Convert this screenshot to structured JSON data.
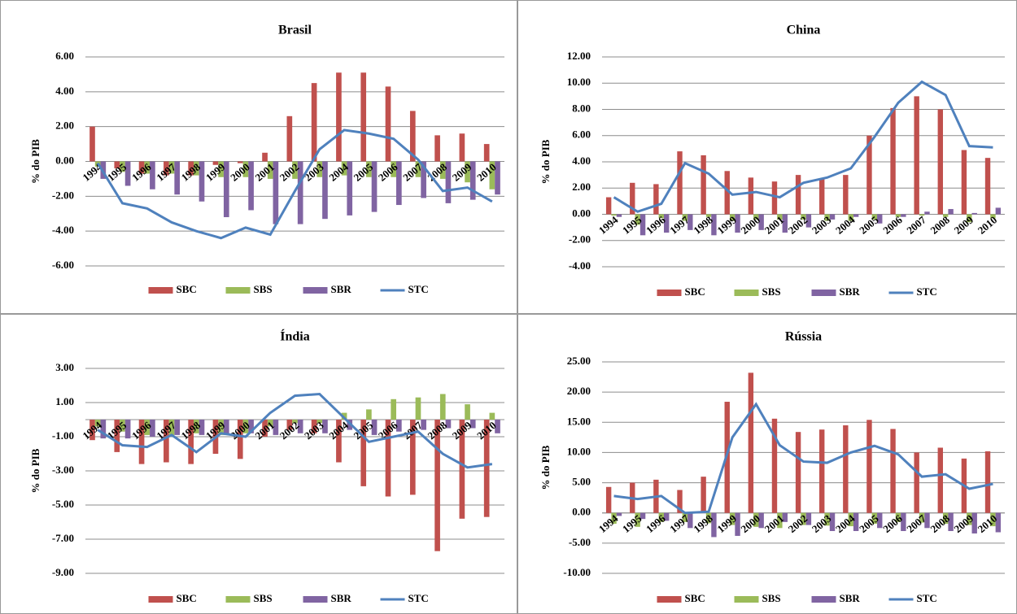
{
  "chart_data": [
    {
      "type": "bar",
      "title": "Brasil",
      "ylabel": "% do PIB",
      "categories": [
        "1994",
        "1995",
        "1996",
        "1997",
        "1998",
        "1999",
        "2000",
        "2001",
        "2002",
        "2003",
        "2004",
        "2005",
        "2006",
        "2007",
        "2008",
        "2009",
        "2010"
      ],
      "ylim": [
        -6,
        6
      ],
      "yticks": [
        {
          "value": -6,
          "label": "-6.00"
        },
        {
          "value": -4,
          "label": "-4.00"
        },
        {
          "value": -2,
          "label": "-2.00"
        },
        {
          "value": 0,
          "label": "0.00"
        },
        {
          "value": 2,
          "label": "2.00"
        },
        {
          "value": 4,
          "label": "4.00"
        },
        {
          "value": 6,
          "label": "6.00"
        }
      ],
      "grid": true,
      "series": [
        {
          "name": "SBC",
          "color": "#c0504d",
          "values": [
            2.0,
            -0.4,
            -0.7,
            -0.8,
            -0.8,
            -0.2,
            -0.1,
            0.5,
            2.6,
            4.5,
            5.1,
            5.1,
            4.3,
            2.9,
            1.5,
            1.6,
            1.0
          ]
        },
        {
          "name": "SBS",
          "color": "#9bbb59",
          "values": [
            -0.3,
            -0.6,
            -0.7,
            -0.7,
            -0.8,
            -0.9,
            -0.9,
            -1.0,
            -1.0,
            -0.9,
            -0.8,
            -0.9,
            -0.9,
            -0.9,
            -1.0,
            -1.2,
            -1.6
          ]
        },
        {
          "name": "SBR",
          "color": "#8064a2",
          "values": [
            -1.0,
            -1.4,
            -1.6,
            -1.9,
            -2.3,
            -3.2,
            -2.8,
            -3.6,
            -3.6,
            -3.3,
            -3.1,
            -2.9,
            -2.5,
            -2.1,
            -2.4,
            -2.2,
            -1.9
          ]
        },
        {
          "name": "STC",
          "color": "#4f81bd",
          "type": "line",
          "values": [
            -0.1,
            -2.4,
            -2.7,
            -3.5,
            -4.0,
            -4.4,
            -3.8,
            -4.2,
            -1.7,
            0.7,
            1.8,
            1.6,
            1.3,
            0.1,
            -1.7,
            -1.5,
            -2.3
          ]
        }
      ]
    },
    {
      "type": "bar",
      "title": "China",
      "ylabel": "% do PIB",
      "categories": [
        "1994",
        "1995",
        "1996",
        "1997",
        "1998",
        "1999",
        "2000",
        "2001",
        "2002",
        "2003",
        "2004",
        "2005",
        "2006",
        "2007",
        "2008",
        "2009",
        "2010"
      ],
      "ylim": [
        -4,
        12
      ],
      "yticks": [
        {
          "value": -4,
          "label": "-4.00"
        },
        {
          "value": -2,
          "label": "-2.00"
        },
        {
          "value": 0,
          "label": "0.00"
        },
        {
          "value": 2,
          "label": "2.00"
        },
        {
          "value": 4,
          "label": "4.00"
        },
        {
          "value": 6,
          "label": "6.00"
        },
        {
          "value": 8,
          "label": "8.00"
        },
        {
          "value": 10,
          "label": "10.00"
        },
        {
          "value": 12,
          "label": "12.00"
        }
      ],
      "grid": true,
      "series": [
        {
          "name": "SBC",
          "color": "#c0504d",
          "values": [
            1.3,
            2.4,
            2.3,
            4.8,
            4.5,
            3.3,
            2.8,
            2.5,
            3.0,
            2.7,
            3.0,
            6.0,
            8.1,
            9.0,
            8.0,
            4.9,
            4.3
          ]
        },
        {
          "name": "SBS",
          "color": "#9bbb59",
          "values": [
            -0.1,
            -0.8,
            -0.3,
            -0.5,
            -0.2,
            -0.5,
            -0.4,
            -0.4,
            -0.4,
            -0.5,
            -0.5,
            -0.4,
            -0.2,
            -0.1,
            -0.2,
            -0.6,
            -0.3
          ]
        },
        {
          "name": "SBR",
          "color": "#8064a2",
          "values": [
            -0.2,
            -1.6,
            -1.4,
            -1.2,
            -1.6,
            -1.4,
            -1.2,
            -1.4,
            -1.0,
            -0.4,
            -0.2,
            -0.7,
            -0.2,
            0.2,
            0.4,
            0.1,
            0.5
          ]
        },
        {
          "name": "STC",
          "color": "#4f81bd",
          "type": "line",
          "values": [
            1.3,
            0.2,
            0.8,
            3.9,
            3.1,
            1.5,
            1.7,
            1.3,
            2.4,
            2.8,
            3.5,
            5.9,
            8.5,
            10.1,
            9.1,
            5.2,
            5.1
          ]
        }
      ]
    },
    {
      "type": "bar",
      "title": "Índia",
      "ylabel": "% do PIB",
      "categories": [
        "1994",
        "1995",
        "1996",
        "1997",
        "1998",
        "1999",
        "2000",
        "2001",
        "2002",
        "2003",
        "2004",
        "2005",
        "2006",
        "2007",
        "2008",
        "2009",
        "2010"
      ],
      "ylim": [
        -9,
        3
      ],
      "yticks": [
        {
          "value": -9,
          "label": "-9.00"
        },
        {
          "value": -7,
          "label": "-7.00"
        },
        {
          "value": -5,
          "label": "-5.00"
        },
        {
          "value": -3,
          "label": "-3.00"
        },
        {
          "value": -1,
          "label": "-1.00"
        },
        {
          "value": 1,
          "label": "1.00"
        },
        {
          "value": 3,
          "label": "3.00"
        }
      ],
      "grid": true,
      "series": [
        {
          "name": "SBC",
          "color": "#c0504d",
          "values": [
            -1.2,
            -1.9,
            -2.6,
            -2.5,
            -2.6,
            -2.0,
            -2.3,
            -1.0,
            -0.6,
            -0.8,
            -2.5,
            -3.9,
            -4.5,
            -4.4,
            -7.7,
            -5.8,
            -5.7
          ]
        },
        {
          "name": "SBS",
          "color": "#9bbb59",
          "values": [
            -0.4,
            -0.7,
            -0.9,
            -0.9,
            -0.8,
            -0.9,
            -0.8,
            -0.4,
            -0.2,
            -0.2,
            0.4,
            0.6,
            1.2,
            1.3,
            1.5,
            0.9,
            0.4
          ]
        },
        {
          "name": "SBR",
          "color": "#8064a2",
          "values": [
            -1.1,
            -1.1,
            -1.0,
            -0.9,
            -0.9,
            -0.9,
            -0.8,
            -0.9,
            -0.8,
            -0.8,
            -0.6,
            -0.9,
            -0.7,
            -0.6,
            -0.5,
            -0.5,
            -0.8
          ]
        },
        {
          "name": "STC",
          "color": "#4f81bd",
          "type": "line",
          "values": [
            -0.6,
            -1.5,
            -1.6,
            -0.9,
            -1.9,
            -0.8,
            -1.0,
            0.4,
            1.4,
            1.5,
            0.1,
            -1.3,
            -1.0,
            -0.7,
            -2.0,
            -2.8,
            -2.6
          ]
        }
      ]
    },
    {
      "type": "bar",
      "title": "Rússia",
      "ylabel": "% do PIB",
      "categories": [
        "1994",
        "1995",
        "1996",
        "1997",
        "1998",
        "1999",
        "2000",
        "2001",
        "2002",
        "2003",
        "2004",
        "2005",
        "2006",
        "2007",
        "2008",
        "2009",
        "2010"
      ],
      "ylim": [
        -10,
        25
      ],
      "yticks": [
        {
          "value": -10,
          "label": "-10.00"
        },
        {
          "value": -5,
          "label": "-5.00"
        },
        {
          "value": 0,
          "label": "0.00"
        },
        {
          "value": 5,
          "label": "5.00"
        },
        {
          "value": 10,
          "label": "10.00"
        },
        {
          "value": 15,
          "label": "15.00"
        },
        {
          "value": 20,
          "label": "20.00"
        },
        {
          "value": 25,
          "label": "25.00"
        }
      ],
      "grid": true,
      "series": [
        {
          "name": "SBC",
          "color": "#c0504d",
          "values": [
            4.3,
            5.0,
            5.5,
            3.8,
            6.0,
            18.4,
            23.2,
            15.6,
            13.4,
            13.8,
            14.5,
            15.4,
            13.9,
            10.0,
            10.8,
            9.0,
            10.2
          ]
        },
        {
          "name": "SBS",
          "color": "#9bbb59",
          "values": [
            -1.8,
            -2.3,
            -1.5,
            -1.5,
            -1.7,
            -2.0,
            -2.3,
            -2.5,
            -2.0,
            -2.1,
            -2.2,
            -1.8,
            -1.5,
            -1.6,
            -1.8,
            -2.0,
            -2.2
          ]
        },
        {
          "name": "SBR",
          "color": "#8064a2",
          "values": [
            -0.5,
            -1.0,
            -1.3,
            -2.5,
            -4.0,
            -3.8,
            -2.5,
            -1.5,
            -2.0,
            -3.0,
            -3.0,
            -2.5,
            -3.0,
            -2.5,
            -3.0,
            -3.4,
            -3.2
          ]
        },
        {
          "name": "STC",
          "color": "#4f81bd",
          "type": "line",
          "values": [
            2.8,
            2.3,
            2.8,
            0.0,
            0.2,
            12.5,
            18.0,
            11.2,
            8.5,
            8.3,
            10.0,
            11.1,
            9.7,
            6.0,
            6.4,
            4.0,
            4.8
          ]
        }
      ]
    }
  ]
}
